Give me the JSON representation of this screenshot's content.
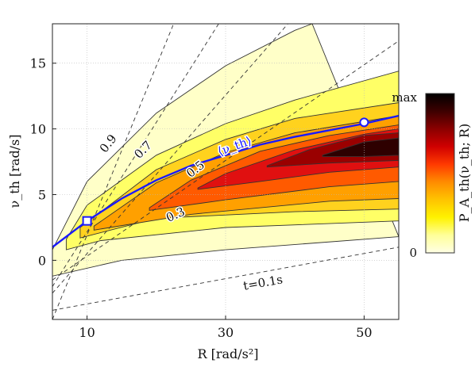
{
  "chart_data": {
    "type": "contour",
    "xlabel": "R [rad/s²]",
    "ylabel": "ν_th [rad/s]",
    "xlim": [
      5,
      55
    ],
    "ylim": [
      -4.5,
      18
    ],
    "x_ticks": [
      10,
      30,
      50
    ],
    "y_ticks": [
      0,
      5,
      10,
      15
    ],
    "x_tick_labels": [
      "10",
      "30",
      "50"
    ],
    "y_tick_labels": [
      "0",
      "5",
      "10",
      "15"
    ],
    "grid": true,
    "colorbar": {
      "label": "P_A_th(ν_th; R)",
      "min_label": "0",
      "max_label": "max",
      "colors": [
        "#ffffe5",
        "#ffff99",
        "#fff200",
        "#ffc400",
        "#ff8c00",
        "#ff3a00",
        "#d00000",
        "#8b0000",
        "#3d0000",
        "#000000"
      ]
    },
    "contour_levels": [
      {
        "level": 1,
        "color": "#ffffc8",
        "upper": [
          [
            5,
            0.8
          ],
          [
            10,
            6.0
          ],
          [
            20,
            11.2
          ],
          [
            30,
            14.8
          ],
          [
            40,
            17.5
          ],
          [
            42.5,
            18
          ]
        ],
        "lower": [
          [
            5,
            -1.2
          ],
          [
            15,
            0.0
          ],
          [
            30,
            0.8
          ],
          [
            55,
            1.8
          ]
        ]
      },
      {
        "level": 2,
        "color": "#ffff66",
        "upper": [
          [
            7,
            1.6
          ],
          [
            10,
            4.2
          ],
          [
            20,
            8.0
          ],
          [
            30,
            10.4
          ],
          [
            40,
            12.2
          ],
          [
            55,
            14.4
          ]
        ],
        "lower": [
          [
            7,
            0.8
          ],
          [
            12,
            1.5
          ],
          [
            30,
            2.5
          ],
          [
            55,
            3.0
          ]
        ]
      },
      {
        "level": 3,
        "color": "#ffd21e",
        "upper": [
          [
            9,
            2.5
          ],
          [
            20,
            6.9
          ],
          [
            30,
            9.2
          ],
          [
            40,
            10.8
          ],
          [
            55,
            12.0
          ]
        ],
        "lower": [
          [
            9,
            1.7
          ],
          [
            20,
            3.2
          ],
          [
            40,
            3.7
          ],
          [
            55,
            3.9
          ]
        ]
      },
      {
        "level": 4,
        "color": "#ffa000",
        "upper": [
          [
            11,
            2.6
          ],
          [
            20,
            5.9
          ],
          [
            30,
            8.2
          ],
          [
            40,
            9.7
          ],
          [
            55,
            11.0
          ]
        ],
        "lower": [
          [
            11,
            2.3
          ],
          [
            25,
            3.5
          ],
          [
            45,
            4.5
          ],
          [
            55,
            4.7
          ]
        ]
      },
      {
        "level": 5,
        "color": "#ff5a00",
        "upper": [
          [
            19,
            4.0
          ],
          [
            25,
            6.1
          ],
          [
            35,
            8.3
          ],
          [
            45,
            9.5
          ],
          [
            55,
            10.3
          ]
        ],
        "lower": [
          [
            19,
            3.8
          ],
          [
            30,
            4.6
          ],
          [
            45,
            5.6
          ],
          [
            55,
            6.0
          ]
        ]
      },
      {
        "level": 6,
        "color": "#e01010",
        "upper": [
          [
            26,
            5.5
          ],
          [
            30,
            6.6
          ],
          [
            40,
            8.4
          ],
          [
            50,
            9.6
          ],
          [
            55,
            10.0
          ]
        ],
        "lower": [
          [
            26,
            5.4
          ],
          [
            35,
            6.0
          ],
          [
            45,
            6.7
          ],
          [
            55,
            7.1
          ]
        ]
      },
      {
        "level": 7,
        "color": "#9a0000",
        "upper": [
          [
            36,
            7.2
          ],
          [
            42,
            8.4
          ],
          [
            50,
            9.5
          ],
          [
            55,
            9.7
          ]
        ],
        "lower": [
          [
            36,
            7.1
          ],
          [
            45,
            7.4
          ],
          [
            55,
            7.6
          ]
        ]
      },
      {
        "level": 8,
        "color": "#2e0000",
        "upper": [
          [
            44,
            8.0
          ],
          [
            50,
            9.0
          ],
          [
            55,
            9.3
          ]
        ],
        "lower": [
          [
            44,
            7.9
          ],
          [
            50,
            7.9
          ],
          [
            55,
            8.0
          ]
        ]
      }
    ],
    "series": [
      {
        "name": "⟨ν_th⟩",
        "color": "#1a1aff",
        "x": [
          5,
          10,
          15,
          20,
          25,
          30,
          35,
          40,
          45,
          50,
          55
        ],
        "y": [
          1.0,
          3.0,
          4.7,
          6.1,
          7.2,
          8.0,
          8.8,
          9.4,
          9.9,
          10.4,
          11.0
        ]
      }
    ],
    "iso_time_lines": [
      {
        "label": "0.9",
        "x": [
          5,
          22.5
        ],
        "y": [
          -4.5,
          18.0
        ]
      },
      {
        "label": "0.7",
        "x": [
          5,
          29.0
        ],
        "y": [
          -2.0,
          18.0
        ]
      },
      {
        "label": "0.5",
        "x": [
          5,
          39.0
        ],
        "y": [
          -2.5,
          18.0
        ]
      },
      {
        "label": "0.3",
        "x": [
          5,
          55
        ],
        "y": [
          -1.5,
          16.7
        ]
      },
      {
        "label": "t=0.1s",
        "x": [
          5,
          55
        ],
        "y": [
          -3.8,
          1.0
        ]
      }
    ],
    "markers": [
      {
        "shape": "square",
        "x": 10.0,
        "y": 3.0
      },
      {
        "shape": "circle",
        "x": 50.0,
        "y": 10.5
      }
    ]
  }
}
